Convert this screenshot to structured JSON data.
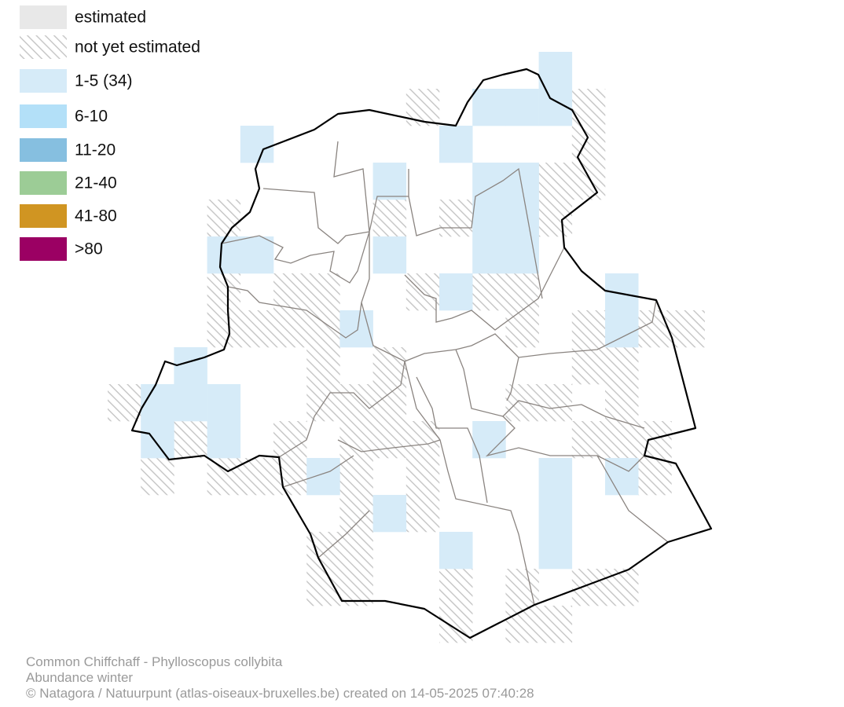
{
  "legend": {
    "items": [
      {
        "label": "estimated",
        "color": "#e8e8e8"
      },
      {
        "label": "not yet estimated",
        "color": "#c8c8c8"
      },
      {
        "label": "1-5 (34)",
        "color": "#d6ebf8"
      },
      {
        "label": "6-10",
        "color": "#b3e0f8"
      },
      {
        "label": "11-20",
        "color": "#86bfe0"
      },
      {
        "label": "21-40",
        "color": "#9ccc96"
      },
      {
        "label": "41-80",
        "color": "#d09522"
      },
      {
        "label": ">80",
        "color": "#9b0063"
      }
    ]
  },
  "footer": {
    "lines": [
      "Common Chiffchaff - Phylloscopus collybita",
      "Abundance winter",
      "© Natagora / Natuurpunt (atlas-oiseaux-bruxelles.be) created on 14-05-2025 07:40:28"
    ]
  }
}
